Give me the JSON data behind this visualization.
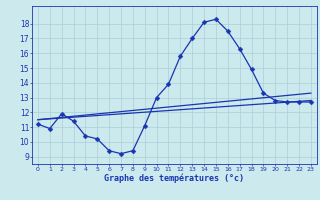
{
  "title": "",
  "xlabel": "Graphe des températures (°c)",
  "ylabel": "",
  "xlim": [
    -0.5,
    23.5
  ],
  "ylim": [
    8.5,
    19.2
  ],
  "yticks": [
    9,
    10,
    11,
    12,
    13,
    14,
    15,
    16,
    17,
    18
  ],
  "xticks": [
    0,
    1,
    2,
    3,
    4,
    5,
    6,
    7,
    8,
    9,
    10,
    11,
    12,
    13,
    14,
    15,
    16,
    17,
    18,
    19,
    20,
    21,
    22,
    23
  ],
  "bg_color": "#cce9ee",
  "grid_color": "#aacfd6",
  "line_color": "#1a35b0",
  "line1_x": [
    0,
    1,
    2,
    3,
    4,
    5,
    6,
    7,
    8,
    9,
    10,
    11,
    12,
    13,
    14,
    15,
    16,
    17,
    18,
    19,
    20,
    21,
    22,
    23
  ],
  "line1_y": [
    11.2,
    10.9,
    11.9,
    11.4,
    10.4,
    10.2,
    9.4,
    9.2,
    9.4,
    11.1,
    13.0,
    13.9,
    15.8,
    17.0,
    18.1,
    18.3,
    17.5,
    16.3,
    14.9,
    13.3,
    12.8,
    12.7,
    12.7,
    12.7
  ],
  "line2_x": [
    0,
    23
  ],
  "line2_y": [
    11.5,
    12.8
  ],
  "line3_x": [
    0,
    23
  ],
  "line3_y": [
    11.5,
    13.3
  ],
  "marker": "D",
  "markersize": 2.5,
  "linewidth": 0.9
}
